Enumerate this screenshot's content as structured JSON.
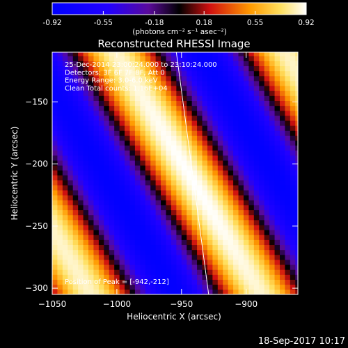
{
  "colorbar": {
    "ticks": [
      "-0.92",
      "-0.55",
      "-0.18",
      "0.18",
      "0.55",
      "0.92"
    ],
    "tick_values": [
      -0.92,
      -0.55,
      -0.18,
      0.18,
      0.55,
      0.92
    ],
    "range": [
      -0.92,
      0.92
    ],
    "unit_label": "(photons cm⁻² s⁻¹ asec⁻²)",
    "colormap": "blue-purple-red-yellow-white"
  },
  "chart_data": {
    "type": "heatmap",
    "title": "Reconstructed RHESSI Image",
    "xlabel": "Heliocentric X (arcsec)",
    "ylabel": "Heliocentric Y (arcsec)",
    "xlim": [
      -1050,
      -860
    ],
    "ylim": [
      -305,
      -110
    ],
    "x_ticks": [
      -1050,
      -1000,
      -950,
      -900
    ],
    "y_ticks": [
      -150,
      -200,
      -250,
      -300
    ],
    "x_tick_labels": [
      "−1050",
      "−1000",
      "−950",
      "−900"
    ],
    "y_tick_labels": [
      "−150",
      "−200",
      "−250",
      "−300"
    ],
    "info_lines": [
      "25-Dec-2014 23:00:24.000 to 23:10:24.000",
      "Detectors: 3F 6F 7F 8F, Att 0",
      "Energy Range: 3.0-6.0 keV",
      "Clean    Total counts: 1.16E+04"
    ],
    "peak_label": "Position of Peak = [-942,-212]",
    "peak": [
      -942,
      -212
    ],
    "limb_line": [
      [
        -954,
        -110
      ],
      [
        -929,
        -305
      ]
    ],
    "fringe_wavevector": [
      0.0476,
      0.0275
    ],
    "pixel_size_arcsec": 4
  },
  "footer": {
    "timestamp": "18-Sep-2017 10:17"
  }
}
